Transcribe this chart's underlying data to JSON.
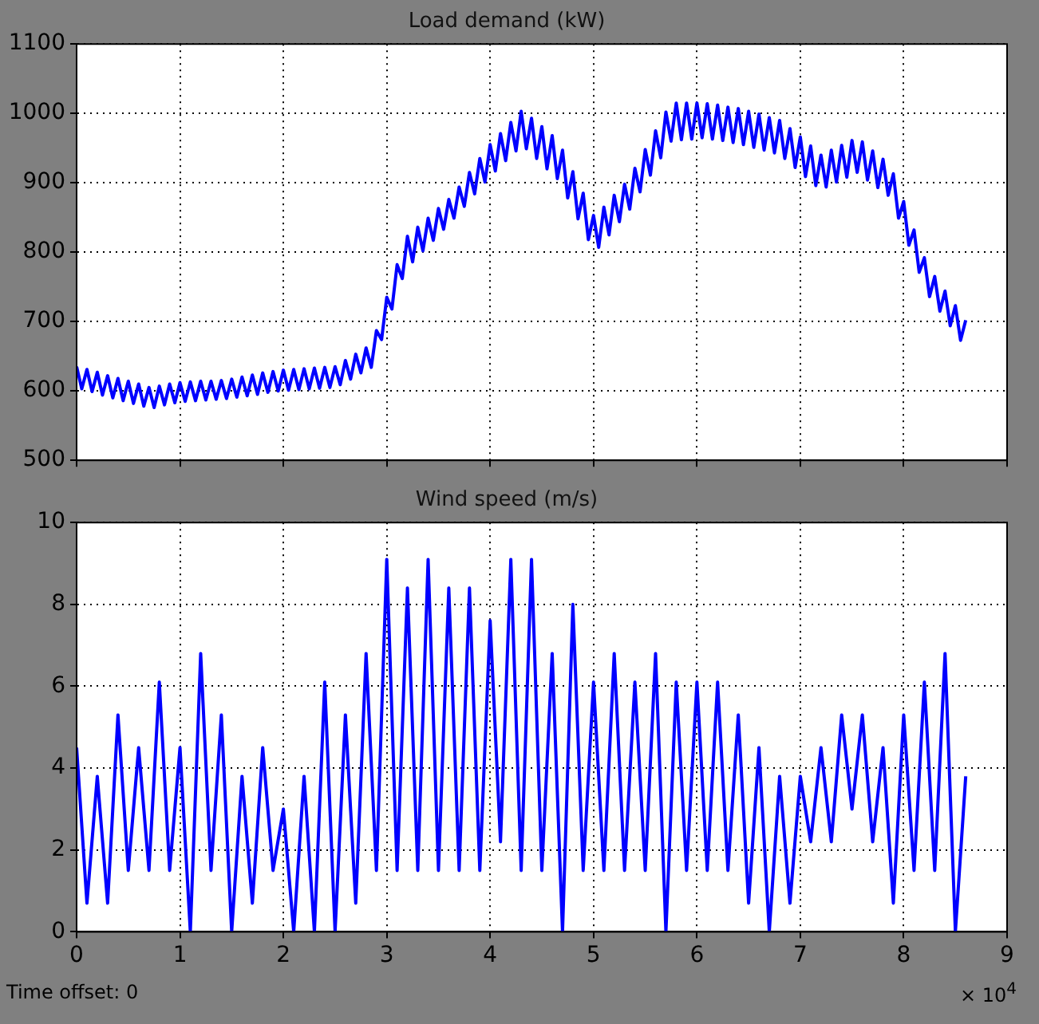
{
  "chart_data": [
    {
      "type": "line",
      "title": "Load demand (kW)",
      "xlim": [
        0,
        9
      ],
      "ylim": [
        500,
        1100
      ],
      "yticks": [
        500,
        600,
        700,
        800,
        900,
        1000,
        1100
      ],
      "xticks": [
        0,
        1,
        2,
        3,
        4,
        5,
        6,
        7,
        8,
        9
      ],
      "tick_labels": "y",
      "grid": true,
      "x": [
        0,
        0.05,
        0.1,
        0.15,
        0.2,
        0.25,
        0.3,
        0.35,
        0.4,
        0.45,
        0.5,
        0.55,
        0.6,
        0.65,
        0.7,
        0.75,
        0.8,
        0.85,
        0.9,
        0.95,
        1.0,
        1.05,
        1.1,
        1.15,
        1.2,
        1.25,
        1.3,
        1.35,
        1.4,
        1.45,
        1.5,
        1.55,
        1.6,
        1.65,
        1.7,
        1.75,
        1.8,
        1.85,
        1.9,
        1.95,
        2.0,
        2.05,
        2.1,
        2.15,
        2.2,
        2.25,
        2.3,
        2.35,
        2.4,
        2.45,
        2.5,
        2.55,
        2.6,
        2.65,
        2.7,
        2.75,
        2.8,
        2.85,
        2.9,
        2.95,
        3.0,
        3.05,
        3.1,
        3.15,
        3.2,
        3.25,
        3.3,
        3.35,
        3.4,
        3.45,
        3.5,
        3.55,
        3.6,
        3.65,
        3.7,
        3.75,
        3.8,
        3.85,
        3.9,
        3.95,
        4.0,
        4.05,
        4.1,
        4.15,
        4.2,
        4.25,
        4.3,
        4.35,
        4.4,
        4.45,
        4.5,
        4.55,
        4.6,
        4.65,
        4.7,
        4.75,
        4.8,
        4.85,
        4.9,
        4.95,
        5.0,
        5.05,
        5.1,
        5.15,
        5.2,
        5.25,
        5.3,
        5.35,
        5.4,
        5.45,
        5.5,
        5.55,
        5.6,
        5.65,
        5.7,
        5.75,
        5.8,
        5.85,
        5.9,
        5.95,
        6.0,
        6.05,
        6.1,
        6.15,
        6.2,
        6.25,
        6.3,
        6.35,
        6.4,
        6.45,
        6.5,
        6.55,
        6.6,
        6.65,
        6.7,
        6.75,
        6.8,
        6.85,
        6.9,
        6.95,
        7.0,
        7.05,
        7.1,
        7.15,
        7.2,
        7.25,
        7.3,
        7.35,
        7.4,
        7.45,
        7.5,
        7.55,
        7.6,
        7.65,
        7.7,
        7.75,
        7.8,
        7.85,
        7.9,
        7.95,
        8.0,
        8.05,
        8.1,
        8.15,
        8.2,
        8.25,
        8.3,
        8.35,
        8.4,
        8.45,
        8.5,
        8.55,
        8.6
      ],
      "series": [
        {
          "color": "#0000ff",
          "values": [
            635,
            603,
            631,
            599,
            627,
            594,
            622,
            590,
            618,
            586,
            614,
            582,
            610,
            578,
            605,
            576,
            607,
            580,
            610,
            583,
            612,
            585,
            613,
            586,
            614,
            587,
            614,
            588,
            615,
            589,
            617,
            591,
            620,
            593,
            623,
            595,
            626,
            598,
            628,
            600,
            630,
            601,
            631,
            602,
            632,
            603,
            633,
            604,
            634,
            605,
            635,
            609,
            644,
            617,
            653,
            626,
            662,
            634,
            687,
            674,
            735,
            718,
            782,
            762,
            823,
            786,
            836,
            802,
            849,
            817,
            863,
            833,
            876,
            849,
            894,
            866,
            915,
            884,
            935,
            901,
            955,
            917,
            971,
            932,
            987,
            946,
            1003,
            949,
            993,
            935,
            981,
            920,
            968,
            906,
            947,
            878,
            916,
            848,
            885,
            818,
            853,
            807,
            865,
            825,
            882,
            844,
            898,
            862,
            921,
            887,
            948,
            911,
            975,
            936,
            1002,
            960,
            1015,
            962,
            1015,
            963,
            1015,
            965,
            1014,
            963,
            1012,
            961,
            1009,
            958,
            1007,
            955,
            1003,
            951,
            999,
            947,
            994,
            943,
            990,
            935,
            978,
            922,
            966,
            909,
            953,
            896,
            940,
            894,
            947,
            901,
            954,
            908,
            961,
            915,
            959,
            904,
            946,
            893,
            934,
            882,
            913,
            849,
            873,
            810,
            832,
            771,
            792,
            736,
            765,
            715,
            744,
            694,
            723,
            673,
            702
          ]
        }
      ]
    },
    {
      "type": "line",
      "title": "Wind speed (m/s)",
      "xlim": [
        0,
        9
      ],
      "ylim": [
        0,
        10
      ],
      "yticks": [
        0,
        2,
        4,
        6,
        8,
        10
      ],
      "xticks": [
        0,
        1,
        2,
        3,
        4,
        5,
        6,
        7,
        8,
        9
      ],
      "grid": true,
      "annotations": [
        "Time offset:  0",
        "× 10$^{4}$"
      ],
      "x": [
        0,
        0.1,
        0.2,
        0.3,
        0.4,
        0.5,
        0.6,
        0.7,
        0.8,
        0.9,
        1.0,
        1.1,
        1.2,
        1.3,
        1.4,
        1.5,
        1.6,
        1.7,
        1.8,
        1.9,
        2.0,
        2.1,
        2.2,
        2.3,
        2.4,
        2.5,
        2.6,
        2.7,
        2.8,
        2.9,
        3.0,
        3.1,
        3.2,
        3.3,
        3.4,
        3.5,
        3.6,
        3.7,
        3.8,
        3.9,
        4.0,
        4.1,
        4.2,
        4.3,
        4.4,
        4.5,
        4.6,
        4.7,
        4.8,
        4.9,
        5.0,
        5.1,
        5.2,
        5.3,
        5.4,
        5.5,
        5.6,
        5.7,
        5.8,
        5.9,
        6.0,
        6.1,
        6.2,
        6.3,
        6.4,
        6.5,
        6.6,
        6.7,
        6.8,
        6.9,
        7.0,
        7.1,
        7.2,
        7.3,
        7.4,
        7.5,
        7.6,
        7.7,
        7.8,
        7.9,
        8.0,
        8.1,
        8.2,
        8.3,
        8.4,
        8.5,
        8.6
      ],
      "series": [
        {
          "color": "#0000ff",
          "values": [
            4.5,
            0.7,
            3.8,
            0.7,
            5.3,
            1.5,
            4.5,
            1.5,
            6.1,
            1.5,
            4.5,
            0,
            6.8,
            1.5,
            5.3,
            0,
            3.8,
            0.7,
            4.5,
            1.5,
            3.0,
            0,
            3.8,
            0,
            6.1,
            0,
            5.3,
            0.7,
            6.8,
            1.5,
            9.1,
            1.5,
            8.4,
            1.5,
            9.1,
            1.5,
            8.4,
            1.5,
            8.4,
            1.5,
            7.6,
            2.2,
            9.1,
            1.5,
            9.1,
            1.5,
            6.8,
            0,
            8.0,
            1.5,
            6.1,
            1.5,
            6.8,
            1.5,
            6.1,
            1.5,
            6.8,
            0,
            6.1,
            1.5,
            6.1,
            1.5,
            6.1,
            1.5,
            5.3,
            0.7,
            4.5,
            0,
            3.8,
            0.7,
            3.8,
            2.2,
            4.5,
            2.2,
            5.3,
            3.0,
            5.3,
            2.2,
            4.5,
            0.7,
            5.3,
            1.5,
            6.1,
            1.5,
            6.8,
            0,
            3.8
          ]
        }
      ]
    }
  ]
}
